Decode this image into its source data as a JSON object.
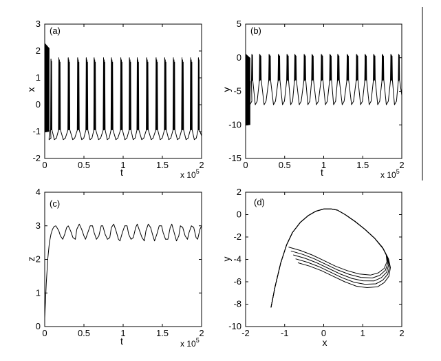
{
  "chart_data": [
    {
      "type": "line",
      "panel_label": "(a)",
      "xlabel": "t",
      "ylabel": "x",
      "x_exponent": "x 10",
      "x_exponent_power": "5",
      "xlim": [
        0,
        2
      ],
      "ylim": [
        -2,
        3
      ],
      "xticks": [
        "0",
        "0.5",
        "1",
        "1.5",
        "2"
      ],
      "yticks": [
        "-2",
        "-1",
        "0",
        "1",
        "2",
        "3"
      ],
      "series": [
        {
          "transient": {
            "x_range": [
              0,
              0.06
            ],
            "y_range": [
              -1.0,
              2.3
            ]
          },
          "baseline": -0.95,
          "trough": -1.3,
          "spikes": [
            {
              "x": 0.08,
              "n": 2,
              "peak": 1.7
            },
            {
              "x": 0.18,
              "n": 3,
              "peak": 1.75
            },
            {
              "x": 0.3,
              "n": 3,
              "peak": 1.75
            },
            {
              "x": 0.42,
              "n": 3,
              "peak": 1.75
            },
            {
              "x": 0.53,
              "n": 3,
              "peak": 1.75
            },
            {
              "x": 0.63,
              "n": 3,
              "peak": 1.75
            },
            {
              "x": 0.75,
              "n": 3,
              "peak": 1.75
            },
            {
              "x": 0.85,
              "n": 3,
              "peak": 1.75
            },
            {
              "x": 0.97,
              "n": 3,
              "peak": 1.75
            },
            {
              "x": 1.08,
              "n": 3,
              "peak": 1.75
            },
            {
              "x": 1.18,
              "n": 3,
              "peak": 1.75
            },
            {
              "x": 1.3,
              "n": 3,
              "peak": 1.75
            },
            {
              "x": 1.42,
              "n": 3,
              "peak": 1.75
            },
            {
              "x": 1.53,
              "n": 3,
              "peak": 1.75
            },
            {
              "x": 1.64,
              "n": 3,
              "peak": 1.75
            },
            {
              "x": 1.75,
              "n": 3,
              "peak": 1.75
            },
            {
              "x": 1.86,
              "n": 3,
              "peak": 1.75
            },
            {
              "x": 1.96,
              "n": 2,
              "peak": 1.75
            }
          ]
        }
      ]
    },
    {
      "type": "line",
      "panel_label": "(b)",
      "xlabel": "t",
      "ylabel": "y",
      "x_exponent": "x 10",
      "x_exponent_power": "5",
      "xlim": [
        0,
        2
      ],
      "ylim": [
        -15,
        5
      ],
      "xticks": [
        "0",
        "0.5",
        "1",
        "1.5",
        "2"
      ],
      "yticks": [
        "-15",
        "-10",
        "-5",
        "0",
        "5"
      ],
      "series": [
        {
          "transient": {
            "x_range": [
              0,
              0.06
            ],
            "y_range": [
              -10,
              0.6
            ]
          },
          "baseline": -3.5,
          "trough": -7,
          "spikes": [
            {
              "x": 0.08,
              "n": 2,
              "peak": 0.5
            },
            {
              "x": 0.18,
              "n": 3,
              "peak": 0.5
            },
            {
              "x": 0.3,
              "n": 3,
              "peak": 0.5
            },
            {
              "x": 0.42,
              "n": 3,
              "peak": 0.5
            },
            {
              "x": 0.53,
              "n": 3,
              "peak": 0.5
            },
            {
              "x": 0.63,
              "n": 3,
              "peak": 0.5
            },
            {
              "x": 0.75,
              "n": 3,
              "peak": 0.5
            },
            {
              "x": 0.85,
              "n": 3,
              "peak": 0.5
            },
            {
              "x": 0.97,
              "n": 3,
              "peak": 0.5
            },
            {
              "x": 1.08,
              "n": 3,
              "peak": 0.5
            },
            {
              "x": 1.18,
              "n": 3,
              "peak": 0.5
            },
            {
              "x": 1.3,
              "n": 3,
              "peak": 0.5
            },
            {
              "x": 1.42,
              "n": 3,
              "peak": 0.5
            },
            {
              "x": 1.53,
              "n": 3,
              "peak": 0.5
            },
            {
              "x": 1.64,
              "n": 3,
              "peak": 0.5
            },
            {
              "x": 1.75,
              "n": 3,
              "peak": 0.5
            },
            {
              "x": 1.86,
              "n": 3,
              "peak": 0.5
            },
            {
              "x": 1.96,
              "n": 2,
              "peak": 0.5
            }
          ]
        }
      ]
    },
    {
      "type": "line",
      "panel_label": "(c)",
      "xlabel": "t",
      "ylabel": "z",
      "x_exponent": "x 10",
      "x_exponent_power": "5",
      "xlim": [
        0,
        2
      ],
      "ylim": [
        0,
        4
      ],
      "xticks": [
        "0",
        "0.5",
        "1",
        "1.5",
        "2"
      ],
      "yticks": [
        "0",
        "1",
        "2",
        "3",
        "4"
      ],
      "series": [
        {
          "x": [
            0,
            0.02,
            0.04,
            0.06,
            0.08,
            0.1,
            0.12,
            0.14,
            0.155,
            0.18,
            0.2,
            0.23,
            0.255,
            0.28,
            0.3,
            0.33,
            0.36,
            0.39,
            0.41,
            0.44,
            0.47,
            0.5,
            0.52,
            0.55,
            0.58,
            0.61,
            0.63,
            0.66,
            0.69,
            0.72,
            0.74,
            0.77,
            0.8,
            0.83,
            0.85,
            0.88,
            0.91,
            0.94,
            0.96,
            0.99,
            1.02,
            1.05,
            1.07,
            1.1,
            1.13,
            1.16,
            1.18,
            1.21,
            1.24,
            1.27,
            1.29,
            1.32,
            1.35,
            1.38,
            1.4,
            1.43,
            1.46,
            1.49,
            1.51,
            1.54,
            1.57,
            1.6,
            1.62,
            1.65,
            1.68,
            1.71,
            1.73,
            1.76,
            1.79,
            1.82,
            1.84,
            1.87,
            1.9,
            1.93,
            1.95,
            1.98,
            2.0
          ],
          "y": [
            0.25,
            1.3,
            2.05,
            2.5,
            2.75,
            2.9,
            2.98,
            3.0,
            2.95,
            2.85,
            2.7,
            2.6,
            2.75,
            2.95,
            3.0,
            2.85,
            2.65,
            2.6,
            2.9,
            3.05,
            2.9,
            2.7,
            2.6,
            2.8,
            3.0,
            3.0,
            2.8,
            2.6,
            2.7,
            3.0,
            3.0,
            2.75,
            2.6,
            2.65,
            2.95,
            3.05,
            2.85,
            2.6,
            2.55,
            2.8,
            3.0,
            3.0,
            2.75,
            2.6,
            2.65,
            2.95,
            3.05,
            2.85,
            2.65,
            2.55,
            2.85,
            3.05,
            2.95,
            2.7,
            2.55,
            2.75,
            3.0,
            3.0,
            2.8,
            2.6,
            2.6,
            2.95,
            3.05,
            2.8,
            2.55,
            2.7,
            3.0,
            2.95,
            2.7,
            2.6,
            2.8,
            3.0,
            2.95,
            2.65,
            2.6,
            2.9,
            3.0
          ]
        }
      ]
    },
    {
      "type": "line",
      "panel_label": "(d)",
      "xlabel": "x",
      "ylabel": "y",
      "xlim": [
        -2,
        2
      ],
      "ylim": [
        -10,
        2
      ],
      "xticks": [
        "-2",
        "-1",
        "0",
        "1",
        "2"
      ],
      "yticks": [
        "-10",
        "-8",
        "-6",
        "-4",
        "-2",
        "0",
        "2"
      ],
      "series": [
        {
          "x": [
            -1.35,
            -1.25,
            -1.1,
            -0.95,
            -0.8,
            -0.6,
            -0.4,
            -0.2,
            0.0,
            0.2,
            0.35,
            0.55,
            0.8,
            1.05,
            1.3,
            1.5,
            1.6,
            1.62,
            1.55,
            1.4,
            1.2,
            0.9,
            0.6,
            0.3,
            0.0,
            -0.3,
            -0.6,
            -0.9
          ],
          "y": [
            -8.3,
            -6.5,
            -4.3,
            -2.7,
            -1.6,
            -0.7,
            -0.1,
            0.3,
            0.5,
            0.5,
            0.4,
            0.0,
            -0.6,
            -1.3,
            -2.1,
            -2.9,
            -3.6,
            -4.2,
            -4.8,
            -5.2,
            -5.4,
            -5.3,
            -5.0,
            -4.6,
            -4.1,
            -3.6,
            -3.2,
            -2.9
          ]
        }
      ]
    }
  ]
}
